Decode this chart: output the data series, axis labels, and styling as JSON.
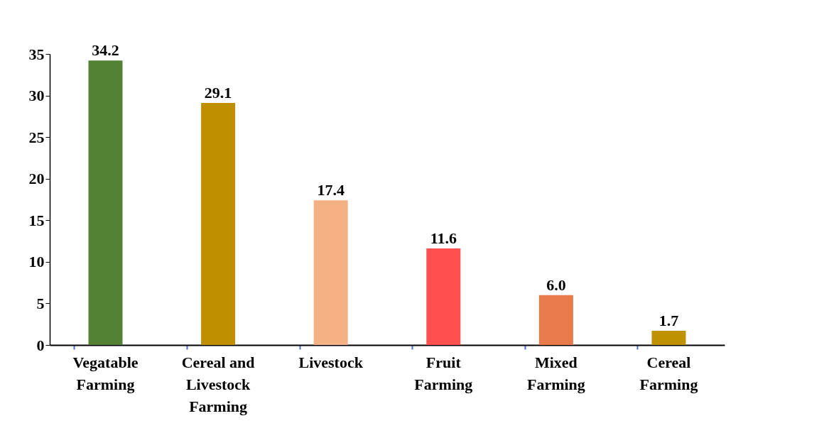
{
  "chart_data": {
    "type": "bar",
    "categories": [
      "Vegatable Farming",
      "Cereal and Livestock Farming",
      "Livestock",
      "Fruit Farming",
      "Mixed Farming",
      "Cereal Farming"
    ],
    "values": [
      34.2,
      29.1,
      17.4,
      11.6,
      6.0,
      1.7
    ],
    "colors": [
      "#548235",
      "#bf8f00",
      "#f4b183",
      "#ff5050",
      "#e97a4a",
      "#bf9000"
    ],
    "value_labels": [
      "34.2",
      "29.1",
      "17.4",
      "11.6",
      "6.0",
      "1.7"
    ],
    "ylim": [
      0,
      35
    ],
    "yticks": [
      0,
      5,
      10,
      15,
      20,
      25,
      30,
      35
    ],
    "grid": false,
    "legend": false
  }
}
